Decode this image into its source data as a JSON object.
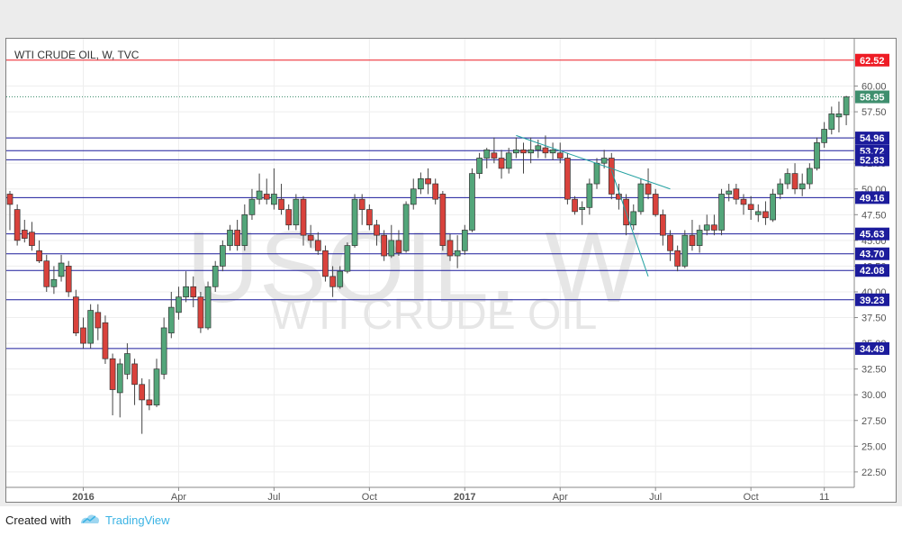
{
  "chart_data": {
    "type": "candlestick",
    "title": "WTI CRUDE OIL, W, TVC",
    "watermark": {
      "symbol": "USOIL, W",
      "name": "WTI CRUDE OIL"
    },
    "ylim": [
      21.0,
      64.6
    ],
    "y_ticks": [
      "22.50",
      "25.00",
      "27.50",
      "30.00",
      "32.50",
      "35.00",
      "37.50",
      "40.00",
      "42.50",
      "45.00",
      "47.50",
      "50.00",
      "52.50",
      "55.00",
      "57.50",
      "60.00"
    ],
    "x_ticks": [
      {
        "label": "2016",
        "week": 10,
        "bold": true
      },
      {
        "label": "Apr",
        "week": 23,
        "bold": false
      },
      {
        "label": "Jul",
        "week": 36,
        "bold": false
      },
      {
        "label": "Oct",
        "week": 49,
        "bold": false
      },
      {
        "label": "2017",
        "week": 62,
        "bold": true
      },
      {
        "label": "Apr",
        "week": 75,
        "bold": false
      },
      {
        "label": "Jul",
        "week": 88,
        "bold": false
      },
      {
        "label": "Oct",
        "week": 101,
        "bold": false
      },
      {
        "label": "11",
        "week": 111,
        "bold": false
      }
    ],
    "levels": [
      {
        "value": 62.52,
        "label": "62.52",
        "color": "#ee1c25"
      },
      {
        "value": 54.96,
        "label": "54.96",
        "color": "#1c1c9c"
      },
      {
        "value": 53.72,
        "label": "53.72",
        "color": "#1c1c9c"
      },
      {
        "value": 52.83,
        "label": "52.83",
        "color": "#1c1c9c"
      },
      {
        "value": 49.16,
        "label": "49.16",
        "color": "#1c1c9c"
      },
      {
        "value": 45.63,
        "label": "45.63",
        "color": "#1c1c9c"
      },
      {
        "value": 43.7,
        "label": "43.70",
        "color": "#1c1c9c"
      },
      {
        "value": 42.08,
        "label": "42.08",
        "color": "#1c1c9c"
      },
      {
        "value": 39.23,
        "label": "39.23",
        "color": "#1c1c9c"
      },
      {
        "value": 34.49,
        "label": "34.49",
        "color": "#1c1c9c"
      }
    ],
    "last_price": {
      "value": 58.95,
      "label": "58.95",
      "color": "#3f8f6e"
    },
    "trendlines": [
      {
        "from": [
          69,
          55.2
        ],
        "to": [
          90,
          50.0
        ],
        "color": "#20a0a0"
      },
      {
        "from": [
          82,
          51.8
        ],
        "to": [
          87,
          41.5
        ],
        "color": "#20a0a0"
      }
    ],
    "candles": [
      [
        49.5,
        48.5,
        49.8,
        46.0
      ],
      [
        48.0,
        45.0,
        48.5,
        44.5
      ],
      [
        46.0,
        45.2,
        47.0,
        44.8
      ],
      [
        45.8,
        44.5,
        46.8,
        44.0
      ],
      [
        44.0,
        43.0,
        45.0,
        42.8
      ],
      [
        43.0,
        40.5,
        43.6,
        40.0
      ],
      [
        40.5,
        41.2,
        42.5,
        39.8
      ],
      [
        41.5,
        42.8,
        43.6,
        41.0
      ],
      [
        42.5,
        40.0,
        43.0,
        39.5
      ],
      [
        39.5,
        36.0,
        40.2,
        35.7
      ],
      [
        36.5,
        35.0,
        37.5,
        34.5
      ],
      [
        35.0,
        38.2,
        38.8,
        34.5
      ],
      [
        38.0,
        36.5,
        38.8,
        35.3
      ],
      [
        37.0,
        33.5,
        37.7,
        33.0
      ],
      [
        33.5,
        30.5,
        34.0,
        28.0
      ],
      [
        30.2,
        33.0,
        33.5,
        27.8
      ],
      [
        32.0,
        34.0,
        35.0,
        31.5
      ],
      [
        33.0,
        31.0,
        33.5,
        29.0
      ],
      [
        31.0,
        29.5,
        31.6,
        26.2
      ],
      [
        29.5,
        29.0,
        31.5,
        28.5
      ],
      [
        29.0,
        32.5,
        33.5,
        28.8
      ],
      [
        32.0,
        36.5,
        37.5,
        31.5
      ],
      [
        36.0,
        38.5,
        40.0,
        35.5
      ],
      [
        38.0,
        39.5,
        40.5,
        37.3
      ],
      [
        39.5,
        40.5,
        42.0,
        39.0
      ],
      [
        40.5,
        39.5,
        41.5,
        38.5
      ],
      [
        39.5,
        36.5,
        40.0,
        36.0
      ],
      [
        36.5,
        40.5,
        41.0,
        36.3
      ],
      [
        40.5,
        42.5,
        43.0,
        40.0
      ],
      [
        42.5,
        44.5,
        45.0,
        42.0
      ],
      [
        44.5,
        46.0,
        46.5,
        44.0
      ],
      [
        46.0,
        44.5,
        47.0,
        44.0
      ],
      [
        44.5,
        47.5,
        48.5,
        44.0
      ],
      [
        47.5,
        49.0,
        50.0,
        47.0
      ],
      [
        49.0,
        49.8,
        51.5,
        48.5
      ],
      [
        49.5,
        49.0,
        51.0,
        48.5
      ],
      [
        48.5,
        49.5,
        52.0,
        48.0
      ],
      [
        49.0,
        48.0,
        50.5,
        47.5
      ],
      [
        48.0,
        46.5,
        48.5,
        46.0
      ],
      [
        46.5,
        49.0,
        49.5,
        46.0
      ],
      [
        49.0,
        45.5,
        49.3,
        44.5
      ],
      [
        45.5,
        45.0,
        46.5,
        44.3
      ],
      [
        45.0,
        44.0,
        45.8,
        43.6
      ],
      [
        44.0,
        41.5,
        44.5,
        41.0
      ],
      [
        41.5,
        40.5,
        42.5,
        39.5
      ],
      [
        40.5,
        42.0,
        42.5,
        40.3
      ],
      [
        42.0,
        44.5,
        44.8,
        41.8
      ],
      [
        44.5,
        49.0,
        49.5,
        44.3
      ],
      [
        49.0,
        48.0,
        49.5,
        46.5
      ],
      [
        48.0,
        46.5,
        48.5,
        46.0
      ],
      [
        46.5,
        45.5,
        47.0,
        44.5
      ],
      [
        45.5,
        43.5,
        46.0,
        43.0
      ],
      [
        43.5,
        45.0,
        46.5,
        43.3
      ],
      [
        45.0,
        43.8,
        46.0,
        43.5
      ],
      [
        44.0,
        48.5,
        48.8,
        43.8
      ],
      [
        48.5,
        50.0,
        51.0,
        48.0
      ],
      [
        50.0,
        51.0,
        51.6,
        49.5
      ],
      [
        51.0,
        50.5,
        52.0,
        49.5
      ],
      [
        50.5,
        49.0,
        51.0,
        48.5
      ],
      [
        49.5,
        44.5,
        49.8,
        44.0
      ],
      [
        45.0,
        43.5,
        45.6,
        43.0
      ],
      [
        43.5,
        44.0,
        45.5,
        42.3
      ],
      [
        44.0,
        46.0,
        46.5,
        43.6
      ],
      [
        46.0,
        51.5,
        52.0,
        45.8
      ],
      [
        51.5,
        53.0,
        53.5,
        51.0
      ],
      [
        53.0,
        53.8,
        54.0,
        52.0
      ],
      [
        53.5,
        53.0,
        55.0,
        52.5
      ],
      [
        53.0,
        52.0,
        53.8,
        51.0
      ],
      [
        52.0,
        53.5,
        54.0,
        51.5
      ],
      [
        53.5,
        53.8,
        55.0,
        53.0
      ],
      [
        53.8,
        53.5,
        54.5,
        51.5
      ],
      [
        53.5,
        53.8,
        55.0,
        52.5
      ],
      [
        53.8,
        54.2,
        54.8,
        53.0
      ],
      [
        54.0,
        53.5,
        55.2,
        53.0
      ],
      [
        53.5,
        53.8,
        54.5,
        52.8
      ],
      [
        53.5,
        53.0,
        54.5,
        52.5
      ],
      [
        53.0,
        49.0,
        53.5,
        48.5
      ],
      [
        49.0,
        47.8,
        49.3,
        47.5
      ],
      [
        48.0,
        48.2,
        48.8,
        46.5
      ],
      [
        48.2,
        50.5,
        51.0,
        47.5
      ],
      [
        50.5,
        52.5,
        53.0,
        50.0
      ],
      [
        52.5,
        53.0,
        53.8,
        52.0
      ],
      [
        53.0,
        49.5,
        53.5,
        49.0
      ],
      [
        49.5,
        49.0,
        50.5,
        48.0
      ],
      [
        49.0,
        46.5,
        49.5,
        45.5
      ],
      [
        46.5,
        47.8,
        48.5,
        46.0
      ],
      [
        47.8,
        50.5,
        51.0,
        47.5
      ],
      [
        50.5,
        49.5,
        52.0,
        49.0
      ],
      [
        49.5,
        47.5,
        50.0,
        47.3
      ],
      [
        47.5,
        45.5,
        48.0,
        44.5
      ],
      [
        45.5,
        44.0,
        46.0,
        43.0
      ],
      [
        44.0,
        42.5,
        44.5,
        42.0
      ],
      [
        42.5,
        45.5,
        46.0,
        42.3
      ],
      [
        45.5,
        44.5,
        47.0,
        44.0
      ],
      [
        44.5,
        46.0,
        46.5,
        43.8
      ],
      [
        46.0,
        46.5,
        47.5,
        45.5
      ],
      [
        46.5,
        46.0,
        47.5,
        45.5
      ],
      [
        46.0,
        49.5,
        50.0,
        45.5
      ],
      [
        49.5,
        49.8,
        50.5,
        48.8
      ],
      [
        50.0,
        49.0,
        50.5,
        48.5
      ],
      [
        49.0,
        48.5,
        49.5,
        47.5
      ],
      [
        48.5,
        48.0,
        49.3,
        47.0
      ],
      [
        47.5,
        47.8,
        48.5,
        46.8
      ],
      [
        47.8,
        47.2,
        48.8,
        46.5
      ],
      [
        47.0,
        49.5,
        50.0,
        46.8
      ],
      [
        49.5,
        50.5,
        51.0,
        49.0
      ],
      [
        50.5,
        51.5,
        52.0,
        50.0
      ],
      [
        51.5,
        50.0,
        52.5,
        49.5
      ],
      [
        50.0,
        50.5,
        51.5,
        49.3
      ],
      [
        50.5,
        52.0,
        52.5,
        50.0
      ],
      [
        52.0,
        54.5,
        55.0,
        51.8
      ],
      [
        54.5,
        55.8,
        56.5,
        54.0
      ],
      [
        55.8,
        57.3,
        58.0,
        55.3
      ],
      [
        57.0,
        57.3,
        58.5,
        55.5
      ],
      [
        57.2,
        58.95,
        59.05,
        56.2
      ]
    ]
  },
  "footer": {
    "credit": "Created with",
    "brand": "TradingView"
  }
}
